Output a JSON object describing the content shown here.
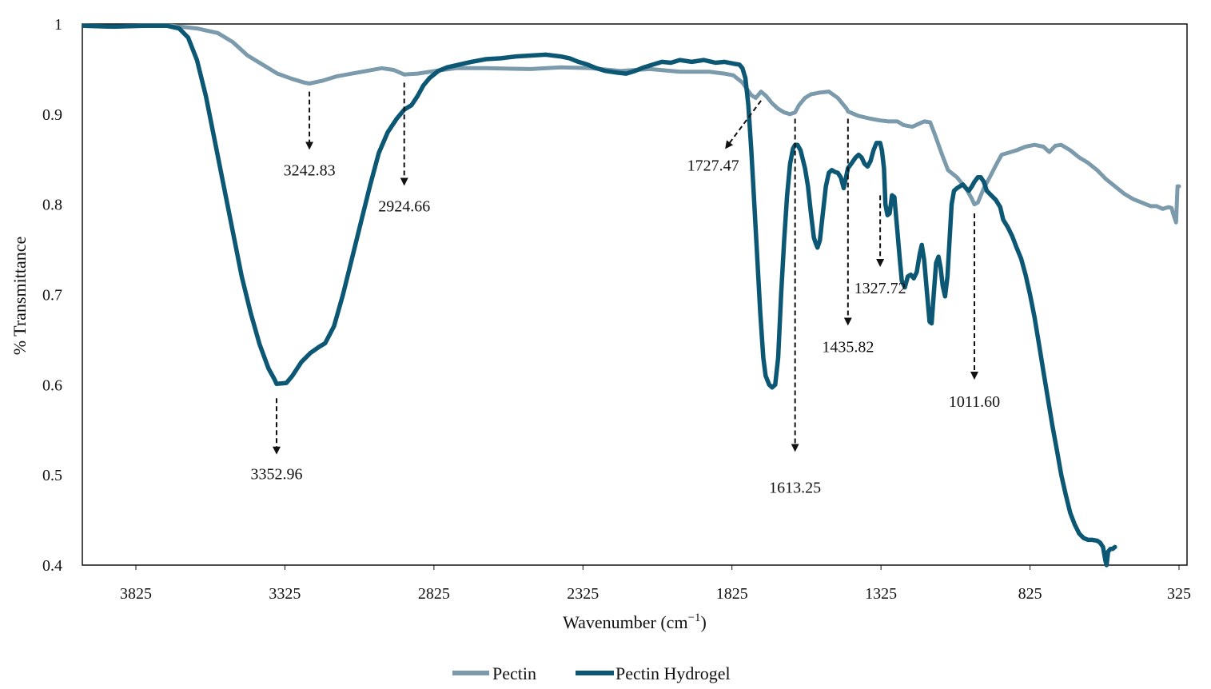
{
  "chart_data": {
    "type": "line",
    "title": "",
    "xlabel": "Wavenumber (cm",
    "xlabel_sup": "−1",
    "xlabel_end": ")",
    "ylabel": "% Transmittance",
    "xlim": [
      4000,
      300
    ],
    "ylim": [
      0.4,
      1.0
    ],
    "x_ticks": [
      3825,
      3325,
      2825,
      2325,
      1825,
      1325,
      825,
      325
    ],
    "x_tick_labels": [
      "3825",
      "3325",
      "2825",
      "2325",
      "1825",
      "1325",
      "825",
      "325"
    ],
    "y_ticks": [
      0.4,
      0.5,
      0.6,
      0.7,
      0.8,
      0.9,
      1.0
    ],
    "y_tick_labels": [
      "0.4",
      "0.5",
      "0.6",
      "0.7",
      "0.8",
      "0.9",
      "1"
    ],
    "legend_position": "bottom-center",
    "series": [
      {
        "name": "Pectin",
        "color": "#7b9aab",
        "points": [
          [
            4000,
            0.998
          ],
          [
            3900,
            0.997
          ],
          [
            3800,
            0.998
          ],
          [
            3700,
            0.998
          ],
          [
            3620,
            0.995
          ],
          [
            3550,
            0.99
          ],
          [
            3500,
            0.98
          ],
          [
            3450,
            0.965
          ],
          [
            3400,
            0.955
          ],
          [
            3350,
            0.945
          ],
          [
            3300,
            0.939
          ],
          [
            3260,
            0.935
          ],
          [
            3242.83,
            0.934
          ],
          [
            3200,
            0.937
          ],
          [
            3150,
            0.942
          ],
          [
            3100,
            0.945
          ],
          [
            3050,
            0.948
          ],
          [
            3000,
            0.951
          ],
          [
            2960,
            0.949
          ],
          [
            2924.66,
            0.944
          ],
          [
            2880,
            0.945
          ],
          [
            2820,
            0.948
          ],
          [
            2750,
            0.951
          ],
          [
            2650,
            0.951
          ],
          [
            2500,
            0.95
          ],
          [
            2400,
            0.952
          ],
          [
            2300,
            0.951
          ],
          [
            2200,
            0.948
          ],
          [
            2100,
            0.95
          ],
          [
            2000,
            0.947
          ],
          [
            1900,
            0.947
          ],
          [
            1850,
            0.945
          ],
          [
            1820,
            0.943
          ],
          [
            1790,
            0.935
          ],
          [
            1760,
            0.921
          ],
          [
            1745,
            0.918
          ],
          [
            1727.47,
            0.925
          ],
          [
            1710,
            0.92
          ],
          [
            1690,
            0.912
          ],
          [
            1670,
            0.906
          ],
          [
            1650,
            0.902
          ],
          [
            1630,
            0.9
          ],
          [
            1613.25,
            0.902
          ],
          [
            1600,
            0.91
          ],
          [
            1580,
            0.918
          ],
          [
            1560,
            0.922
          ],
          [
            1530,
            0.924
          ],
          [
            1500,
            0.925
          ],
          [
            1470,
            0.918
          ],
          [
            1440,
            0.906
          ],
          [
            1435.82,
            0.903
          ],
          [
            1400,
            0.898
          ],
          [
            1360,
            0.895
          ],
          [
            1327.72,
            0.893
          ],
          [
            1300,
            0.892
          ],
          [
            1270,
            0.892
          ],
          [
            1250,
            0.888
          ],
          [
            1220,
            0.886
          ],
          [
            1200,
            0.889
          ],
          [
            1180,
            0.892
          ],
          [
            1160,
            0.891
          ],
          [
            1145,
            0.878
          ],
          [
            1120,
            0.855
          ],
          [
            1100,
            0.838
          ],
          [
            1070,
            0.83
          ],
          [
            1040,
            0.818
          ],
          [
            1020,
            0.806
          ],
          [
            1011.6,
            0.8
          ],
          [
            1000,
            0.802
          ],
          [
            980,
            0.818
          ],
          [
            960,
            0.83
          ],
          [
            940,
            0.843
          ],
          [
            920,
            0.855
          ],
          [
            900,
            0.857
          ],
          [
            870,
            0.86
          ],
          [
            840,
            0.864
          ],
          [
            810,
            0.866
          ],
          [
            780,
            0.864
          ],
          [
            760,
            0.858
          ],
          [
            740,
            0.865
          ],
          [
            720,
            0.866
          ],
          [
            690,
            0.86
          ],
          [
            660,
            0.852
          ],
          [
            630,
            0.846
          ],
          [
            600,
            0.838
          ],
          [
            570,
            0.828
          ],
          [
            540,
            0.82
          ],
          [
            510,
            0.812
          ],
          [
            480,
            0.806
          ],
          [
            450,
            0.802
          ],
          [
            420,
            0.798
          ],
          [
            400,
            0.798
          ],
          [
            380,
            0.795
          ],
          [
            360,
            0.797
          ],
          [
            350,
            0.796
          ],
          [
            345,
            0.79
          ],
          [
            340,
            0.785
          ],
          [
            335,
            0.78
          ],
          [
            330,
            0.82
          ],
          [
            325,
            0.82
          ]
        ]
      },
      {
        "name": "Pectin Hydrogel",
        "color": "#0c5874",
        "points": [
          [
            4000,
            0.998
          ],
          [
            3900,
            0.997
          ],
          [
            3800,
            0.998
          ],
          [
            3720,
            0.998
          ],
          [
            3680,
            0.995
          ],
          [
            3650,
            0.985
          ],
          [
            3620,
            0.96
          ],
          [
            3590,
            0.92
          ],
          [
            3560,
            0.87
          ],
          [
            3530,
            0.82
          ],
          [
            3500,
            0.77
          ],
          [
            3470,
            0.72
          ],
          [
            3440,
            0.68
          ],
          [
            3410,
            0.645
          ],
          [
            3380,
            0.618
          ],
          [
            3360,
            0.606
          ],
          [
            3352.96,
            0.601
          ],
          [
            3320,
            0.602
          ],
          [
            3300,
            0.61
          ],
          [
            3270,
            0.625
          ],
          [
            3240,
            0.635
          ],
          [
            3210,
            0.642
          ],
          [
            3190,
            0.646
          ],
          [
            3160,
            0.665
          ],
          [
            3130,
            0.7
          ],
          [
            3100,
            0.74
          ],
          [
            3070,
            0.78
          ],
          [
            3040,
            0.82
          ],
          [
            3010,
            0.857
          ],
          [
            2980,
            0.88
          ],
          [
            2950,
            0.895
          ],
          [
            2924.66,
            0.905
          ],
          [
            2900,
            0.91
          ],
          [
            2880,
            0.92
          ],
          [
            2860,
            0.932
          ],
          [
            2840,
            0.94
          ],
          [
            2810,
            0.948
          ],
          [
            2780,
            0.952
          ],
          [
            2740,
            0.955
          ],
          [
            2700,
            0.958
          ],
          [
            2650,
            0.961
          ],
          [
            2600,
            0.962
          ],
          [
            2550,
            0.964
          ],
          [
            2500,
            0.965
          ],
          [
            2450,
            0.966
          ],
          [
            2400,
            0.964
          ],
          [
            2370,
            0.962
          ],
          [
            2340,
            0.958
          ],
          [
            2310,
            0.955
          ],
          [
            2280,
            0.951
          ],
          [
            2250,
            0.948
          ],
          [
            2210,
            0.946
          ],
          [
            2180,
            0.945
          ],
          [
            2150,
            0.948
          ],
          [
            2120,
            0.952
          ],
          [
            2090,
            0.955
          ],
          [
            2060,
            0.958
          ],
          [
            2030,
            0.957
          ],
          [
            2000,
            0.96
          ],
          [
            1960,
            0.958
          ],
          [
            1920,
            0.96
          ],
          [
            1880,
            0.957
          ],
          [
            1850,
            0.958
          ],
          [
            1820,
            0.956
          ],
          [
            1800,
            0.955
          ],
          [
            1790,
            0.951
          ],
          [
            1780,
            0.94
          ],
          [
            1770,
            0.91
          ],
          [
            1760,
            0.86
          ],
          [
            1750,
            0.8
          ],
          [
            1740,
            0.74
          ],
          [
            1730,
            0.68
          ],
          [
            1720,
            0.63
          ],
          [
            1712,
            0.61
          ],
          [
            1700,
            0.6
          ],
          [
            1690,
            0.597
          ],
          [
            1680,
            0.6
          ],
          [
            1670,
            0.63
          ],
          [
            1660,
            0.7
          ],
          [
            1650,
            0.76
          ],
          [
            1640,
            0.81
          ],
          [
            1630,
            0.845
          ],
          [
            1620,
            0.862
          ],
          [
            1613.25,
            0.866
          ],
          [
            1605,
            0.866
          ],
          [
            1595,
            0.86
          ],
          [
            1580,
            0.84
          ],
          [
            1570,
            0.82
          ],
          [
            1560,
            0.79
          ],
          [
            1550,
            0.763
          ],
          [
            1545,
            0.758
          ],
          [
            1538,
            0.752
          ],
          [
            1530,
            0.76
          ],
          [
            1520,
            0.79
          ],
          [
            1510,
            0.82
          ],
          [
            1500,
            0.835
          ],
          [
            1490,
            0.838
          ],
          [
            1480,
            0.836
          ],
          [
            1470,
            0.835
          ],
          [
            1460,
            0.83
          ],
          [
            1450,
            0.818
          ],
          [
            1435.82,
            0.84
          ],
          [
            1425,
            0.845
          ],
          [
            1410,
            0.852
          ],
          [
            1400,
            0.855
          ],
          [
            1390,
            0.852
          ],
          [
            1380,
            0.845
          ],
          [
            1370,
            0.842
          ],
          [
            1360,
            0.848
          ],
          [
            1350,
            0.86
          ],
          [
            1340,
            0.868
          ],
          [
            1330,
            0.868
          ],
          [
            1327.72,
            0.868
          ],
          [
            1322,
            0.86
          ],
          [
            1315,
            0.84
          ],
          [
            1310,
            0.8
          ],
          [
            1303,
            0.788
          ],
          [
            1296,
            0.79
          ],
          [
            1288,
            0.81
          ],
          [
            1280,
            0.808
          ],
          [
            1270,
            0.77
          ],
          [
            1262,
            0.74
          ],
          [
            1255,
            0.715
          ],
          [
            1245,
            0.708
          ],
          [
            1235,
            0.72
          ],
          [
            1225,
            0.722
          ],
          [
            1215,
            0.718
          ],
          [
            1205,
            0.725
          ],
          [
            1195,
            0.745
          ],
          [
            1188,
            0.755
          ],
          [
            1180,
            0.738
          ],
          [
            1170,
            0.7
          ],
          [
            1162,
            0.67
          ],
          [
            1155,
            0.668
          ],
          [
            1148,
            0.7
          ],
          [
            1140,
            0.735
          ],
          [
            1132,
            0.742
          ],
          [
            1125,
            0.73
          ],
          [
            1118,
            0.71
          ],
          [
            1110,
            0.698
          ],
          [
            1102,
            0.72
          ],
          [
            1095,
            0.76
          ],
          [
            1088,
            0.8
          ],
          [
            1080,
            0.815
          ],
          [
            1070,
            0.818
          ],
          [
            1060,
            0.82
          ],
          [
            1050,
            0.822
          ],
          [
            1040,
            0.818
          ],
          [
            1030,
            0.815
          ],
          [
            1020,
            0.82
          ],
          [
            1011.6,
            0.825
          ],
          [
            1000,
            0.83
          ],
          [
            990,
            0.83
          ],
          [
            980,
            0.825
          ],
          [
            970,
            0.815
          ],
          [
            955,
            0.81
          ],
          [
            940,
            0.805
          ],
          [
            925,
            0.797
          ],
          [
            915,
            0.783
          ],
          [
            900,
            0.775
          ],
          [
            885,
            0.765
          ],
          [
            870,
            0.752
          ],
          [
            855,
            0.74
          ],
          [
            840,
            0.722
          ],
          [
            825,
            0.7
          ],
          [
            810,
            0.675
          ],
          [
            795,
            0.645
          ],
          [
            780,
            0.615
          ],
          [
            765,
            0.585
          ],
          [
            750,
            0.555
          ],
          [
            735,
            0.528
          ],
          [
            720,
            0.5
          ],
          [
            705,
            0.478
          ],
          [
            690,
            0.458
          ],
          [
            675,
            0.445
          ],
          [
            660,
            0.435
          ],
          [
            645,
            0.43
          ],
          [
            630,
            0.428
          ],
          [
            615,
            0.428
          ],
          [
            600,
            0.427
          ],
          [
            590,
            0.425
          ],
          [
            580,
            0.42
          ],
          [
            572,
            0.405
          ],
          [
            568,
            0.4
          ],
          [
            563,
            0.415
          ],
          [
            555,
            0.418
          ],
          [
            548,
            0.418
          ],
          [
            540,
            0.42
          ]
        ]
      }
    ],
    "annotations": [
      {
        "label": "3242.83",
        "x": 3242.83,
        "tip_y": 0.925,
        "arrow_to_y": 0.865,
        "text_y": 0.85,
        "kind": "down"
      },
      {
        "label": "2924.66",
        "x": 2924.66,
        "tip_y": 0.935,
        "arrow_to_y": 0.825,
        "text_y": 0.81,
        "kind": "down"
      },
      {
        "label": "3352.96",
        "x": 3352.96,
        "tip_y": 0.585,
        "arrow_to_y": 0.527,
        "text_y": 0.513,
        "kind": "down"
      },
      {
        "label": "1727.47",
        "x": 1727.47,
        "tip_y": 0.915,
        "arrow_to_y": 0.865,
        "text_y": 0.855,
        "kind": "diag",
        "to_x": 1840
      },
      {
        "label": "1613.25",
        "x": 1613.25,
        "tip_y": 0.895,
        "arrow_to_y": 0.53,
        "text_y": 0.498,
        "kind": "down"
      },
      {
        "label": "1435.82",
        "x": 1435.82,
        "tip_y": 0.895,
        "arrow_to_y": 0.67,
        "text_y": 0.654,
        "kind": "down"
      },
      {
        "label": "1327.72",
        "x": 1327.72,
        "tip_y": 0.81,
        "arrow_to_y": 0.735,
        "text_y": 0.719,
        "kind": "down"
      },
      {
        "label": "1011.60",
        "x": 1011.6,
        "tip_y": 0.79,
        "arrow_to_y": 0.61,
        "text_y": 0.593,
        "kind": "down"
      }
    ]
  }
}
